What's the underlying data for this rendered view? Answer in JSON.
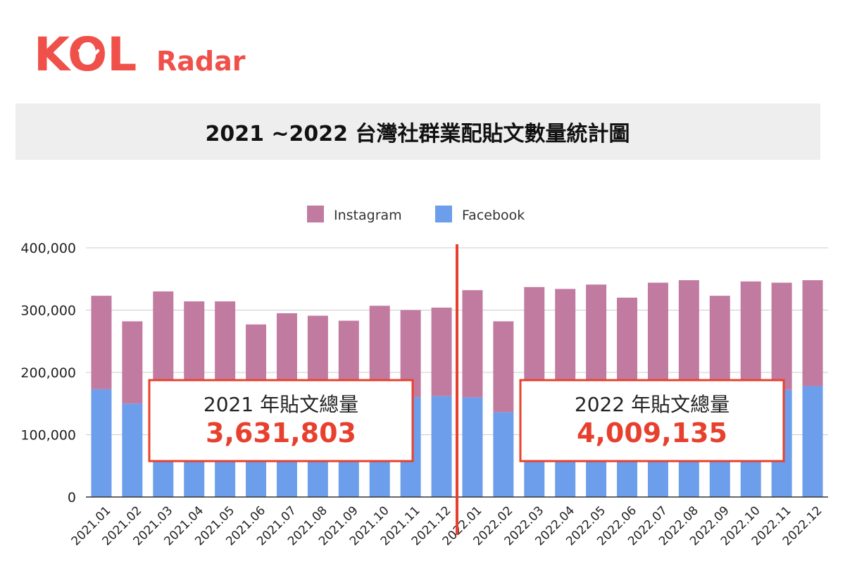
{
  "logo": {
    "kol_text": "KOL",
    "radar_text": "Radar",
    "brand_color": "#f0504a"
  },
  "title": "2021 ~2022 台灣社群業配貼文數量統計圖",
  "legend": {
    "instagram": "Instagram",
    "facebook": "Facebook"
  },
  "colors": {
    "instagram": "#c27ba0",
    "facebook": "#6d9eeb",
    "divider": "#e8402e",
    "highlight": "#e8402e"
  },
  "callouts": [
    {
      "label": "2021 年貼文總量",
      "value": "3,631,803"
    },
    {
      "label": "2022 年貼文總量",
      "value": "4,009,135"
    }
  ],
  "chart_data": {
    "type": "bar",
    "stacked": true,
    "title": "2021 ~2022 台灣社群業配貼文數量統計圖",
    "categories": [
      "2021.01",
      "2021.02",
      "2021.03",
      "2021.04",
      "2021.05",
      "2021.06",
      "2021.07",
      "2021.08",
      "2021.09",
      "2021.10",
      "2021.11",
      "2021.12",
      "2022.01",
      "2022.02",
      "2022.03",
      "2022.04",
      "2022.05",
      "2022.06",
      "2022.07",
      "2022.08",
      "2022.09",
      "2022.10",
      "2022.11",
      "2022.12"
    ],
    "series": [
      {
        "name": "Facebook",
        "values": [
          173000,
          150000,
          165000,
          160000,
          158000,
          145000,
          150000,
          150000,
          152000,
          160000,
          160000,
          162000,
          160000,
          136000,
          170000,
          168000,
          172000,
          165000,
          170000,
          172000,
          165000,
          175000,
          172000,
          178000
        ]
      },
      {
        "name": "Instagram",
        "values": [
          150000,
          132000,
          165000,
          154000,
          156000,
          132000,
          145000,
          141000,
          131000,
          147000,
          140000,
          142000,
          172000,
          146000,
          167000,
          166000,
          169000,
          155000,
          174000,
          176000,
          158000,
          171000,
          172000,
          170000
        ]
      }
    ],
    "ylim": [
      0,
      400000
    ],
    "yticks": [
      "0",
      "100,000",
      "200,000",
      "300,000",
      "400,000"
    ],
    "grid": true,
    "legend_position": "top"
  }
}
